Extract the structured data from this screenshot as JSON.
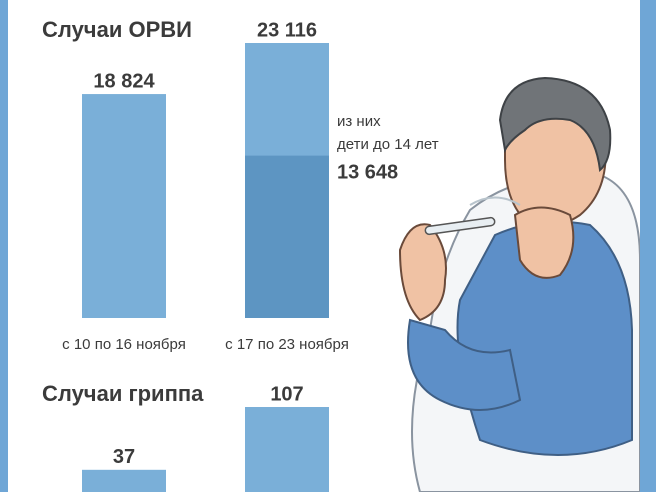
{
  "chart_data": [
    {
      "type": "bar",
      "title": "Случаи ОРВИ",
      "categories": [
        "с 10 по 16 ноября",
        "с 17 по 23 ноября"
      ],
      "values": [
        18824,
        23116
      ],
      "value_labels": [
        "18 824",
        "23 116"
      ],
      "color": "#7aafd8",
      "subset": {
        "label_lines": [
          "из них",
          "дети до 14 лет"
        ],
        "value": 13648,
        "value_label": "13 648",
        "color": "#5d95c2"
      }
    },
    {
      "type": "bar",
      "title": "Случаи гриппа",
      "values": [
        37,
        107
      ],
      "color": "#7aafd8"
    }
  ]
}
